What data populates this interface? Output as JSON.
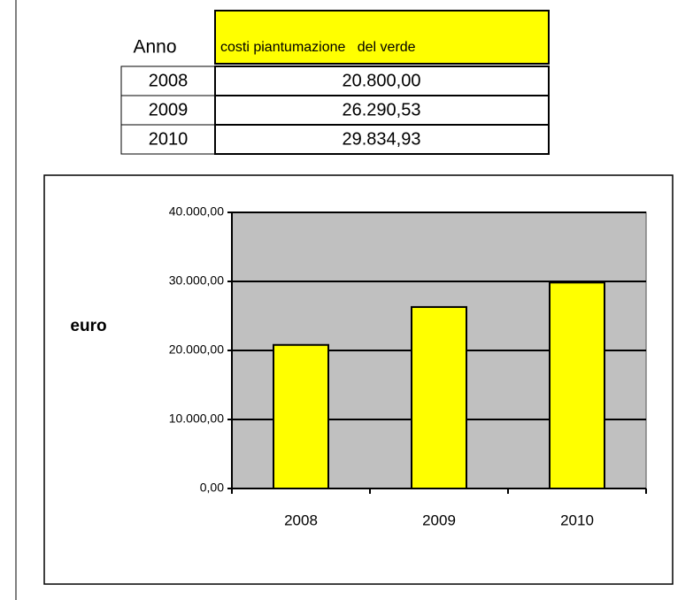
{
  "table": {
    "header": [
      "Anno",
      "costi piantumazione   del verde"
    ],
    "rows": [
      [
        "2008",
        "20.800,00"
      ],
      [
        "2009",
        "26.290,53"
      ],
      [
        "2010",
        "29.834,93"
      ]
    ]
  },
  "chart_data": {
    "type": "bar",
    "ylabel": "euro",
    "categories": [
      "2008",
      "2009",
      "2010"
    ],
    "values": [
      20800,
      26290.53,
      29834.93
    ],
    "color": "#ffff00",
    "plot_background": "#c0c0c0",
    "ylim": [
      0,
      40000
    ],
    "yticks": [
      {
        "value": 0,
        "label": "0,00"
      },
      {
        "value": 10000,
        "label": "10.000,00"
      },
      {
        "value": 20000,
        "label": "20.000,00"
      },
      {
        "value": 30000,
        "label": "30.000,00"
      },
      {
        "value": 40000,
        "label": "40.000,00"
      }
    ],
    "grid": true
  }
}
